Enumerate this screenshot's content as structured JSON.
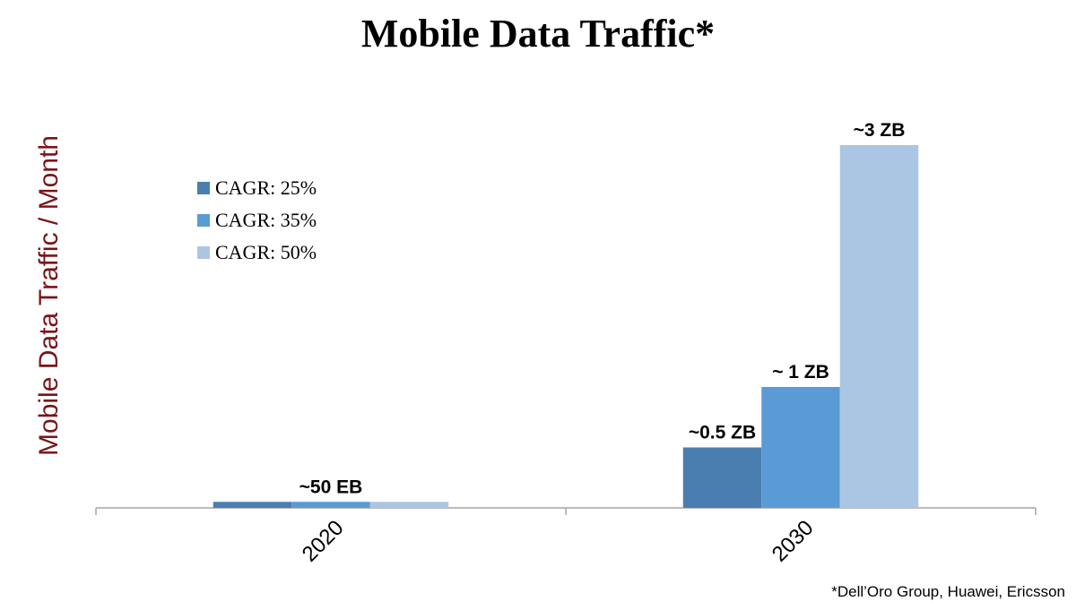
{
  "chart_data": {
    "type": "bar",
    "title": "Mobile Data Traffic*",
    "xlabel": "",
    "ylabel": "Mobile Data Traffic / Month",
    "ylim": [
      0,
      3
    ],
    "units": "ZB",
    "categories": [
      "2020",
      "2030"
    ],
    "series": [
      {
        "name": "CAGR: 25%",
        "color": "#4a7eb0",
        "values": [
          0.05,
          0.5
        ]
      },
      {
        "name": "CAGR: 35%",
        "color": "#5b9bd5",
        "values": [
          0.05,
          1
        ]
      },
      {
        "name": "CAGR: 50%",
        "color": "#abc6e2",
        "values": [
          0.05,
          3
        ]
      }
    ],
    "data_labels": [
      {
        "category": "2020",
        "series": "CAGR: 35%",
        "text": "~50 EB"
      },
      {
        "category": "2030",
        "series": "CAGR: 25%",
        "text": "~0.5 ZB"
      },
      {
        "category": "2030",
        "series": "CAGR: 35%",
        "text": "~ 1 ZB"
      },
      {
        "category": "2030",
        "series": "CAGR: 50%",
        "text": "~3 ZB"
      }
    ],
    "legend_position": "top-left",
    "grid": false,
    "footnote": "*Dell’Oro Group, Huawei, Ericsson"
  }
}
